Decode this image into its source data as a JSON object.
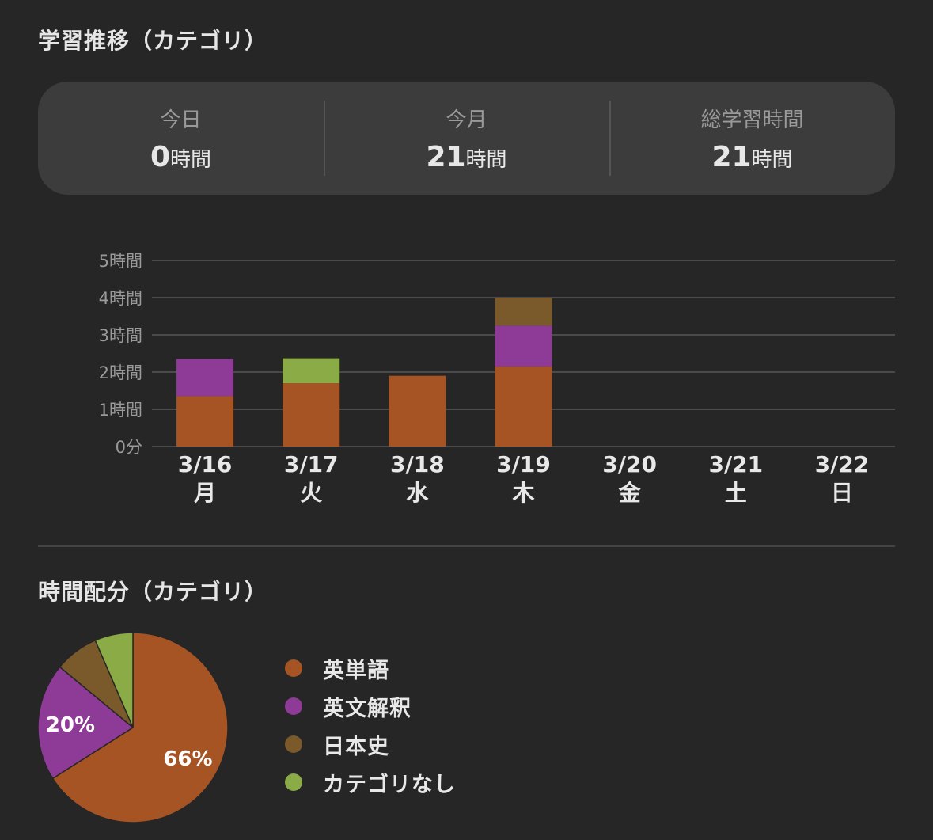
{
  "sections": {
    "trend_title": "学習推移（カテゴリ）",
    "distribution_title": "時間配分（カテゴリ）"
  },
  "summary": [
    {
      "label": "今日",
      "value": "0",
      "unit": "時間"
    },
    {
      "label": "今月",
      "value": "21",
      "unit": "時間"
    },
    {
      "label": "総学習時間",
      "value": "21",
      "unit": "時間"
    }
  ],
  "colors": {
    "英単語": "#a65424",
    "英文解釈": "#8e3b97",
    "日本史": "#7a5a2a",
    "カテゴリなし": "#8aab46"
  },
  "chart_data": [
    {
      "type": "bar",
      "stacked": true,
      "categories": [
        "3/16",
        "3/17",
        "3/18",
        "3/19",
        "3/20",
        "3/21",
        "3/22"
      ],
      "category_sublabels": [
        "月",
        "火",
        "水",
        "木",
        "金",
        "土",
        "日"
      ],
      "y_ticks": [
        "0分",
        "1時間",
        "2時間",
        "3時間",
        "4時間",
        "5時間"
      ],
      "ylim": [
        0,
        5
      ],
      "grid": true,
      "series": [
        {
          "name": "英単語",
          "values": [
            1.35,
            1.7,
            1.9,
            2.15,
            0,
            0,
            0
          ]
        },
        {
          "name": "英文解釈",
          "values": [
            1.0,
            0,
            0,
            1.1,
            0,
            0,
            0
          ]
        },
        {
          "name": "日本史",
          "values": [
            0,
            0,
            0,
            0.75,
            0,
            0,
            0
          ]
        },
        {
          "name": "カテゴリなし",
          "values": [
            0,
            0.67,
            0,
            0,
            0,
            0,
            0
          ]
        }
      ]
    },
    {
      "type": "pie",
      "slices": [
        {
          "name": "英単語",
          "value": 66,
          "label": "66%"
        },
        {
          "name": "英文解釈",
          "value": 20,
          "label": "20%"
        },
        {
          "name": "日本史",
          "value": 7.5,
          "label": ""
        },
        {
          "name": "カテゴリなし",
          "value": 6.5,
          "label": ""
        }
      ],
      "legend": [
        "英単語",
        "英文解釈",
        "日本史",
        "カテゴリなし"
      ],
      "legend_position": "right"
    }
  ]
}
